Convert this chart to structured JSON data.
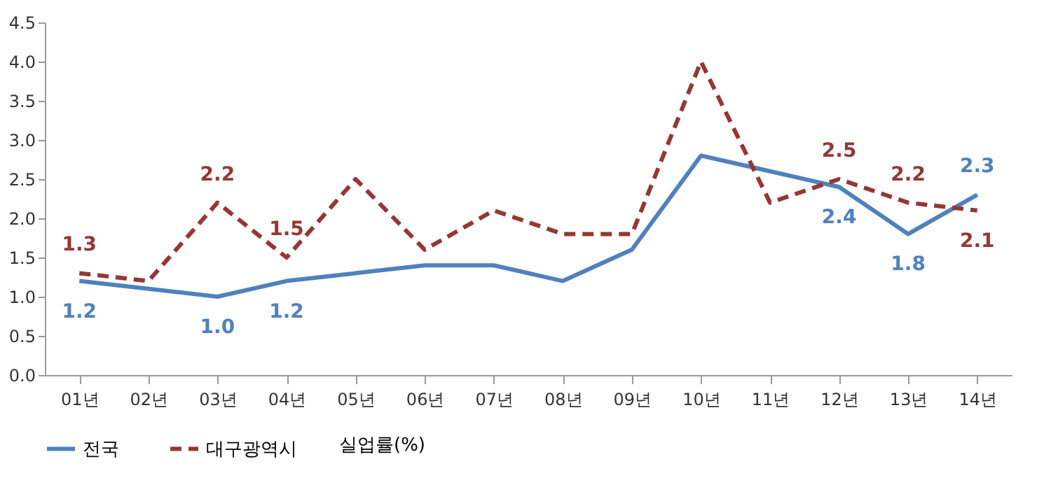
{
  "chart_data": {
    "type": "line",
    "categories": [
      "01년",
      "02년",
      "03년",
      "04년",
      "05년",
      "06년",
      "07년",
      "08년",
      "09년",
      "10년",
      "11년",
      "12년",
      "13년",
      "14년"
    ],
    "series": [
      {
        "name": "전국",
        "color": "#4f81bd",
        "line_style": "solid",
        "values": [
          1.2,
          1.1,
          1.0,
          1.2,
          1.3,
          1.4,
          1.4,
          1.2,
          1.6,
          2.8,
          2.6,
          2.4,
          1.8,
          2.3
        ],
        "value_labels": [
          "1.2",
          null,
          "1.0",
          "1.2",
          null,
          null,
          null,
          null,
          null,
          null,
          null,
          "2.4",
          "1.8",
          "2.3"
        ]
      },
      {
        "name": "대구광역시",
        "color": "#953735",
        "line_style": "dashed",
        "values": [
          1.3,
          1.2,
          2.2,
          1.5,
          2.5,
          1.6,
          2.1,
          1.8,
          1.8,
          4.0,
          2.2,
          2.5,
          2.2,
          2.1
        ],
        "value_labels": [
          "1.3",
          null,
          "2.2",
          "1.5",
          null,
          null,
          null,
          null,
          null,
          null,
          null,
          "2.5",
          "2.2",
          "2.1"
        ]
      }
    ],
    "legend_title": "실업률(%)",
    "legend": "bottom",
    "marker": "none",
    "grid": false,
    "ylim": [
      0,
      4.5
    ],
    "yticks": [
      {
        "value": 0,
        "label": "0.0"
      },
      {
        "value": 0.5,
        "label": "0.5"
      },
      {
        "value": 1,
        "label": "1.0"
      },
      {
        "value": 1.5,
        "label": "1.5"
      },
      {
        "value": 2,
        "label": "2.0"
      },
      {
        "value": 2.5,
        "label": "2.5"
      },
      {
        "value": 3,
        "label": "3.0"
      },
      {
        "value": 3.5,
        "label": "3.5"
      },
      {
        "value": 4,
        "label": "4.0"
      },
      {
        "value": 4.5,
        "label": "4.5"
      }
    ]
  }
}
